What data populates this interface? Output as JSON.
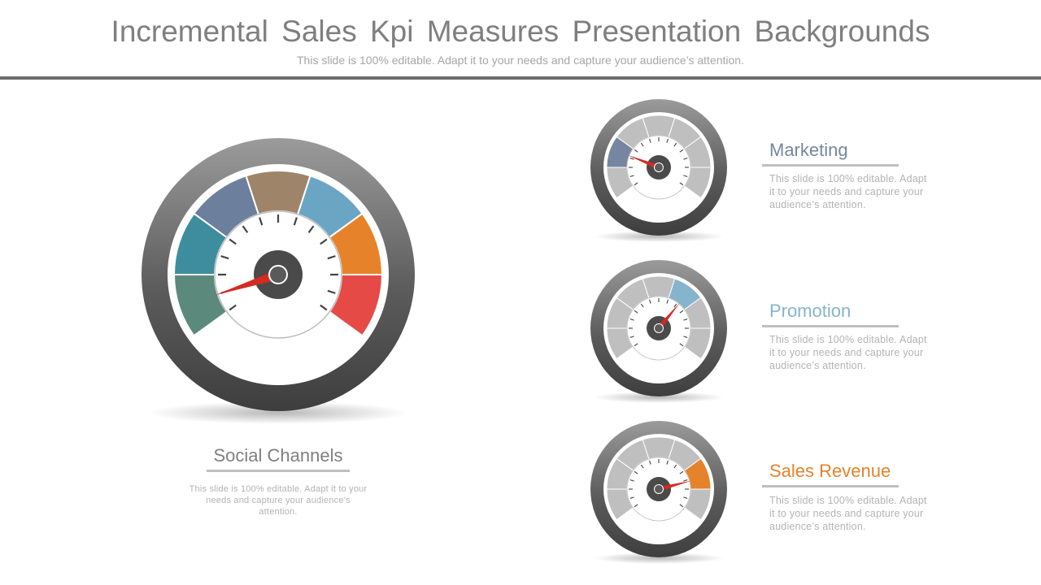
{
  "header": {
    "title": "Incremental Sales Kpi Measures Presentation Backgrounds",
    "subtitle": "This slide is 100% editable. Adapt it to your needs and capture your audience’s attention."
  },
  "colors": {
    "marketing": "#7686a0",
    "promotion": "#86b4cc",
    "sales_revenue": "#e4832b",
    "needle": "#d42a22",
    "segment_grey": "#bfbfbf"
  },
  "main_gauge": {
    "label": "Social Channels",
    "description": "This slide is 100% editable. Adapt it to your needs and capture your audience’s attention.",
    "segment_colors": [
      "#5b8a7c",
      "#3d8d9e",
      "#6c7f9c",
      "#9e8468",
      "#6aa5c4",
      "#e6832a",
      "#e64a47"
    ],
    "needle_position": 0.5
  },
  "side_gauges": [
    {
      "label": "Marketing",
      "label_color": "#7686a0",
      "description": "This slide is 100% editable. Adapt it to your needs and capture your audience’s attention.",
      "highlight_segment": 1,
      "highlight_color": "#7686a0",
      "needle_position": 1.6
    },
    {
      "label": "Promotion",
      "label_color": "#86b4cc",
      "description": "This slide is 100% editable. Adapt it to your needs and capture your audience’s attention.",
      "highlight_segment": 4,
      "highlight_color": "#86b4cc",
      "needle_position": 4.6
    },
    {
      "label": "Sales Revenue",
      "label_color": "#e4832b",
      "description": "This slide is 100% editable. Adapt it to your needs and capture your audience’s attention.",
      "highlight_segment": 5,
      "highlight_color": "#e4832b",
      "needle_position": 5.6
    }
  ]
}
